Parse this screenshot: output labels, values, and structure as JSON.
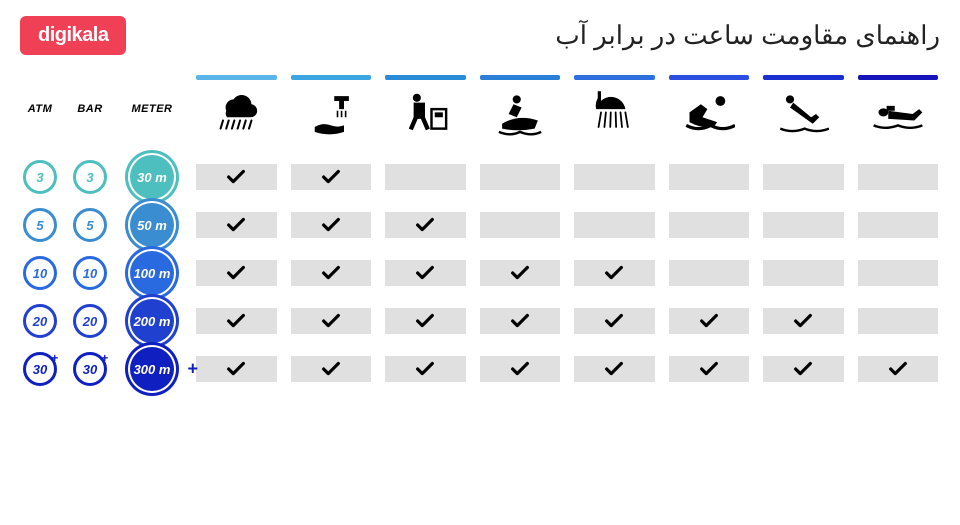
{
  "logo_text": "digikala",
  "logo_bg": "#ef4056",
  "title": "راهنمای مقاومت ساعت در برابر آب",
  "headers": {
    "atm": "ATM",
    "bar": "BAR",
    "meter": "METER"
  },
  "activities": [
    {
      "name": "rain",
      "bar_color": "#5bb5e8"
    },
    {
      "name": "hand-wash",
      "bar_color": "#3aa5e0"
    },
    {
      "name": "work",
      "bar_color": "#2a8cd6"
    },
    {
      "name": "jetski",
      "bar_color": "#2a7fd6"
    },
    {
      "name": "shower",
      "bar_color": "#2e6fe0"
    },
    {
      "name": "swim",
      "bar_color": "#2a4ee0"
    },
    {
      "name": "dive",
      "bar_color": "#1a2fd0"
    },
    {
      "name": "scuba",
      "bar_color": "#1414b8"
    }
  ],
  "rows": [
    {
      "atm": "3",
      "bar": "3",
      "meter": "30 m",
      "ring_color": "#4dbfbf",
      "fill_color": "#4dbfbf",
      "plus": false,
      "checks": [
        true,
        true,
        false,
        false,
        false,
        false,
        false,
        false
      ]
    },
    {
      "atm": "5",
      "bar": "5",
      "meter": "50 m",
      "ring_color": "#3a8dd0",
      "fill_color": "#3a8dd0",
      "plus": false,
      "checks": [
        true,
        true,
        true,
        false,
        false,
        false,
        false,
        false
      ]
    },
    {
      "atm": "10",
      "bar": "10",
      "meter": "100 m",
      "ring_color": "#2a6ae0",
      "fill_color": "#2a6ae0",
      "plus": false,
      "checks": [
        true,
        true,
        true,
        true,
        true,
        false,
        false,
        false
      ]
    },
    {
      "atm": "20",
      "bar": "20",
      "meter": "200 m",
      "ring_color": "#2040d0",
      "fill_color": "#2040d0",
      "plus": false,
      "checks": [
        true,
        true,
        true,
        true,
        true,
        true,
        true,
        false
      ]
    },
    {
      "atm": "30",
      "bar": "30",
      "meter": "300 m",
      "ring_color": "#1020c0",
      "fill_color": "#1020c0",
      "plus": true,
      "checks": [
        true,
        true,
        true,
        true,
        true,
        true,
        true,
        true
      ]
    }
  ],
  "cell_bg": "#e0e0e0",
  "check_color": "#000000"
}
